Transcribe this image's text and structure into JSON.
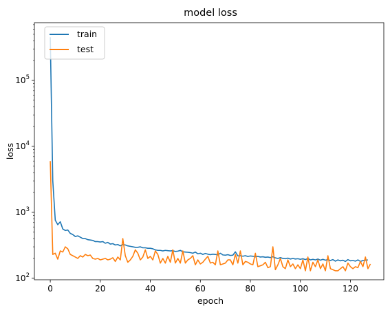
{
  "chart_data": {
    "type": "line",
    "title": "model loss",
    "xlabel": "epoch",
    "ylabel": "loss",
    "xlim": [
      -6.35,
      133.35
    ],
    "ylim": [
      95,
      750000
    ],
    "yscale": "log",
    "grid": false,
    "legend_position": "top-left",
    "x_ticks": [
      0,
      20,
      40,
      60,
      80,
      100,
      120
    ],
    "x_tick_labels": [
      "0",
      "20",
      "40",
      "60",
      "80",
      "100",
      "120"
    ],
    "y_ticks": [
      100,
      1000,
      10000,
      100000
    ],
    "y_tick_labels": [
      {
        "base": "10",
        "exp": "2"
      },
      {
        "base": "10",
        "exp": "3"
      },
      {
        "base": "10",
        "exp": "4"
      },
      {
        "base": "10",
        "exp": "5"
      }
    ],
    "series": [
      {
        "name": "train",
        "color": "#1f77b4",
        "values": [
          450000,
          3000,
          760,
          650,
          720,
          560,
          530,
          540,
          480,
          460,
          430,
          440,
          420,
          400,
          400,
          385,
          380,
          375,
          360,
          360,
          355,
          360,
          340,
          350,
          330,
          335,
          320,
          325,
          310,
          325,
          320,
          310,
          305,
          300,
          295,
          295,
          300,
          290,
          290,
          285,
          285,
          280,
          270,
          265,
          265,
          260,
          265,
          262,
          260,
          262,
          255,
          258,
          265,
          252,
          250,
          248,
          245,
          240,
          250,
          235,
          240,
          230,
          238,
          232,
          228,
          232,
          230,
          226,
          240,
          226,
          224,
          228,
          222,
          224,
          252,
          218,
          220,
          216,
          220,
          214,
          218,
          216,
          212,
          215,
          210,
          212,
          208,
          210,
          206,
          212,
          204,
          200,
          206,
          200,
          198,
          202,
          196,
          200,
          196,
          198,
          194,
          198,
          192,
          200,
          190,
          194,
          190,
          196,
          188,
          194,
          188,
          192,
          186,
          192,
          182,
          190,
          184,
          188,
          180,
          192,
          184,
          186,
          182,
          190,
          180,
          186,
          188,
          190
        ]
      },
      {
        "name": "test",
        "color": "#ff7f0e",
        "values": [
          6000,
          230,
          240,
          195,
          260,
          250,
          300,
          280,
          230,
          220,
          210,
          200,
          220,
          210,
          230,
          220,
          225,
          200,
          195,
          200,
          190,
          195,
          200,
          190,
          195,
          205,
          180,
          210,
          190,
          400,
          220,
          175,
          190,
          215,
          270,
          240,
          190,
          210,
          270,
          200,
          215,
          190,
          260,
          230,
          170,
          200,
          170,
          215,
          175,
          270,
          170,
          200,
          170,
          260,
          170,
          190,
          200,
          220,
          160,
          190,
          165,
          175,
          195,
          215,
          170,
          175,
          160,
          260,
          160,
          165,
          170,
          190,
          190,
          160,
          230,
          170,
          260,
          160,
          180,
          175,
          165,
          160,
          240,
          150,
          155,
          160,
          175,
          145,
          150,
          300,
          135,
          160,
          200,
          150,
          140,
          190,
          150,
          165,
          140,
          160,
          140,
          190,
          130,
          210,
          130,
          175,
          150,
          190,
          140,
          165,
          130,
          220,
          140,
          135,
          130,
          130,
          140,
          150,
          130,
          170,
          150,
          140,
          150,
          145,
          180,
          150,
          210,
          140,
          165
        ]
      }
    ]
  }
}
